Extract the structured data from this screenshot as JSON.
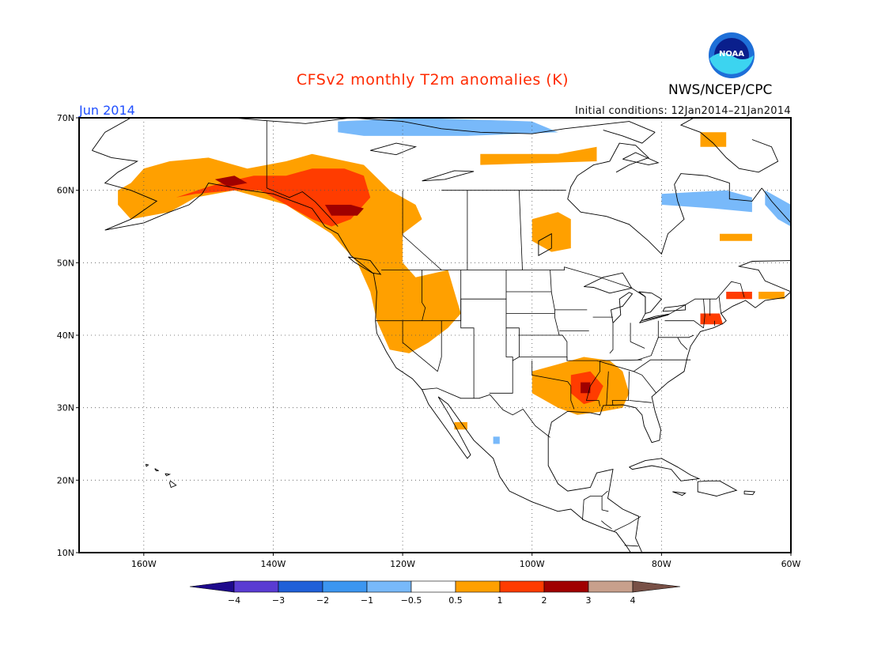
{
  "header": {
    "title": "CFSv2 monthly T2m anomalies (K)",
    "month": "Jun 2014",
    "initial_conditions": "Initial conditions: 12Jan2014–21Jan2014",
    "agency": "NWS/NCEP/CPC",
    "logo_text": "NOAA"
  },
  "map": {
    "lon_range": [
      -170,
      -60
    ],
    "lat_range": [
      10,
      70
    ],
    "lat_ticks": [
      {
        "value": 70,
        "label": "70N"
      },
      {
        "value": 60,
        "label": "60N"
      },
      {
        "value": 50,
        "label": "50N"
      },
      {
        "value": 40,
        "label": "40N"
      },
      {
        "value": 30,
        "label": "30N"
      },
      {
        "value": 20,
        "label": "20N"
      },
      {
        "value": 10,
        "label": "10N"
      }
    ],
    "lon_ticks": [
      {
        "value": -160,
        "label": "160W"
      },
      {
        "value": -140,
        "label": "140W"
      },
      {
        "value": -120,
        "label": "120W"
      },
      {
        "value": -100,
        "label": "100W"
      },
      {
        "value": -80,
        "label": "80W"
      },
      {
        "value": -60,
        "label": "60W"
      }
    ]
  },
  "colorbar": {
    "labels": [
      "−4",
      "−3",
      "−2",
      "−1",
      "−0.5",
      "0.5",
      "1",
      "2",
      "3",
      "4"
    ],
    "colors": {
      "lt_m4": "#1e0a8c",
      "m4_m3": "#5a3cd2",
      "m3_m2": "#2060d8",
      "m2_m1": "#3c96f0",
      "m1_m05": "#78b9fa",
      "m05_05": "#ffffff",
      "05_1": "#ffa000",
      "1_2": "#ff3c00",
      "2_3": "#a00000",
      "3_4": "#c8a08c",
      "gt_4": "#785046"
    }
  },
  "anomaly_regions": [
    {
      "name": "alaska",
      "class": "05_1",
      "lonlat": [
        [
          -162,
          61
        ],
        [
          -160,
          63
        ],
        [
          -156,
          64
        ],
        [
          -150,
          64.5
        ],
        [
          -144,
          63
        ],
        [
          -138,
          64
        ],
        [
          -134,
          65
        ],
        [
          -126,
          63.5
        ],
        [
          -122,
          60
        ],
        [
          -118,
          58
        ],
        [
          -117,
          56
        ],
        [
          -120,
          54
        ],
        [
          -120,
          50
        ],
        [
          -118,
          48
        ],
        [
          -113,
          49
        ],
        [
          -112,
          46
        ],
        [
          -111,
          43
        ],
        [
          -113,
          41
        ],
        [
          -116,
          39
        ],
        [
          -119,
          37.5
        ],
        [
          -122,
          38
        ],
        [
          -124,
          42
        ],
        [
          -125,
          46
        ],
        [
          -127,
          50
        ],
        [
          -131,
          54
        ],
        [
          -138,
          58
        ],
        [
          -146,
          60
        ],
        [
          -152,
          59
        ],
        [
          -156,
          57
        ],
        [
          -162,
          56
        ],
        [
          -164,
          58
        ],
        [
          -164,
          60
        ]
      ]
    },
    {
      "name": "yukon-bc",
      "class": "1_2",
      "lonlat": [
        [
          -148,
          61
        ],
        [
          -143,
          62
        ],
        [
          -138,
          62
        ],
        [
          -134,
          63
        ],
        [
          -129,
          63
        ],
        [
          -126,
          62
        ],
        [
          -125,
          59
        ],
        [
          -128,
          56
        ],
        [
          -131,
          55
        ],
        [
          -134,
          56
        ],
        [
          -138,
          58
        ],
        [
          -142,
          60
        ],
        [
          -146,
          60
        ],
        [
          -152,
          59.5
        ],
        [
          -155,
          59
        ],
        [
          -150,
          60.5
        ]
      ]
    },
    {
      "name": "core",
      "class": "2_3",
      "lonlat": [
        [
          -132,
          58
        ],
        [
          -128,
          58
        ],
        [
          -126,
          57.5
        ],
        [
          -127,
          56.5
        ],
        [
          -131,
          56.5
        ]
      ]
    },
    {
      "name": "core2",
      "class": "2_3",
      "lonlat": [
        [
          -149,
          61.5
        ],
        [
          -146,
          62
        ],
        [
          -144,
          61
        ],
        [
          -147,
          60.5
        ]
      ]
    },
    {
      "name": "mississippi",
      "class": "05_1",
      "lonlat": [
        [
          -100,
          35
        ],
        [
          -96,
          36
        ],
        [
          -92,
          37
        ],
        [
          -88,
          36.5
        ],
        [
          -86,
          35
        ],
        [
          -85,
          32
        ],
        [
          -86,
          30
        ],
        [
          -89,
          29.5
        ],
        [
          -93,
          29
        ],
        [
          -96,
          30
        ],
        [
          -100,
          32
        ]
      ]
    },
    {
      "name": "mississippi-core",
      "class": "1_2",
      "lonlat": [
        [
          -94,
          34.5
        ],
        [
          -91,
          35
        ],
        [
          -89,
          33
        ],
        [
          -90,
          31
        ],
        [
          -92,
          30.5
        ],
        [
          -94,
          32
        ]
      ]
    },
    {
      "name": "mississippi-core2",
      "class": "2_3",
      "lonlat": [
        [
          -92.5,
          33.5
        ],
        [
          -91,
          33.5
        ],
        [
          -91,
          32
        ],
        [
          -92.5,
          32
        ]
      ]
    },
    {
      "name": "new-england",
      "class": "1_2",
      "lonlat": [
        [
          -74,
          43
        ],
        [
          -71,
          43
        ],
        [
          -70.5,
          41.5
        ],
        [
          -74,
          41.5
        ]
      ]
    },
    {
      "name": "maine",
      "class": "1_2",
      "lonlat": [
        [
          -70,
          46
        ],
        [
          -66,
          46
        ],
        [
          -66,
          45
        ],
        [
          -70,
          45
        ]
      ]
    },
    {
      "name": "hudson-west",
      "class": "05_1",
      "lonlat": [
        [
          -100,
          56
        ],
        [
          -96,
          57
        ],
        [
          -94,
          56
        ],
        [
          -94,
          52
        ],
        [
          -97,
          51.5
        ],
        [
          -100,
          53
        ]
      ]
    },
    {
      "name": "north-arctic",
      "class": "05_1",
      "lonlat": [
        [
          -108,
          65
        ],
        [
          -96,
          65
        ],
        [
          -90,
          66
        ],
        [
          -90,
          64
        ],
        [
          -108,
          63.5
        ]
      ]
    },
    {
      "name": "greenland-edge",
      "class": "05_1",
      "lonlat": [
        [
          -74,
          68
        ],
        [
          -70,
          68
        ],
        [
          -70,
          66
        ],
        [
          -74,
          66
        ]
      ]
    },
    {
      "name": "labrador",
      "class": "05_1",
      "lonlat": [
        [
          -71,
          54
        ],
        [
          -66,
          54
        ],
        [
          -66,
          53
        ],
        [
          -71,
          53
        ]
      ]
    },
    {
      "name": "nova-scotia",
      "class": "05_1",
      "lonlat": [
        [
          -65,
          46
        ],
        [
          -61,
          46
        ],
        [
          -61,
          45
        ],
        [
          -65,
          45
        ]
      ]
    },
    {
      "name": "baja",
      "class": "05_1",
      "lonlat": [
        [
          -112,
          28
        ],
        [
          -110,
          28
        ],
        [
          -110,
          27
        ],
        [
          -112,
          27
        ]
      ]
    },
    {
      "name": "arctic-cool",
      "class": "m1_m05",
      "lonlat": [
        [
          -130,
          69.5
        ],
        [
          -118,
          70
        ],
        [
          -100,
          69.5
        ],
        [
          -96,
          68
        ],
        [
          -110,
          67.5
        ],
        [
          -126,
          67.5
        ],
        [
          -130,
          68
        ]
      ]
    },
    {
      "name": "hudson-cool",
      "class": "m1_m05",
      "lonlat": [
        [
          -80,
          59.5
        ],
        [
          -70,
          60
        ],
        [
          -66,
          59
        ],
        [
          -66,
          57
        ],
        [
          -72,
          57.5
        ],
        [
          -80,
          58
        ]
      ]
    },
    {
      "name": "labrador-cool",
      "class": "m1_m05",
      "lonlat": [
        [
          -64,
          60
        ],
        [
          -60,
          58
        ],
        [
          -60,
          55
        ],
        [
          -62,
          56
        ],
        [
          -64,
          58
        ]
      ]
    },
    {
      "name": "mexico-cool",
      "class": "m1_m05",
      "lonlat": [
        [
          -106,
          26
        ],
        [
          -105,
          26
        ],
        [
          -105,
          25
        ],
        [
          -106,
          25
        ]
      ]
    }
  ]
}
